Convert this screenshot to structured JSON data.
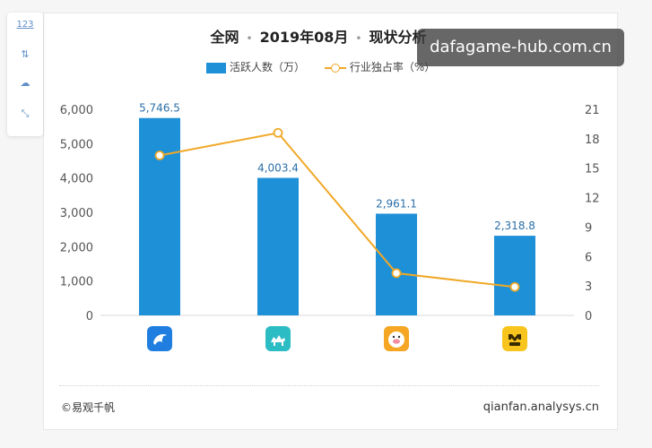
{
  "toolbar": {
    "items": [
      {
        "label": "123",
        "name": "data-view"
      },
      {
        "label": "⇅",
        "name": "switch-chart"
      },
      {
        "label": "☁",
        "name": "comment"
      },
      {
        "label": "⤡",
        "name": "fullscreen"
      }
    ]
  },
  "title": {
    "part1": "全网",
    "part2": "2019年08月",
    "part3": "现状分析"
  },
  "watermark": "dafagame-hub.com.cn",
  "colors": {
    "bar": "#1e90d8",
    "line": "#f0a826",
    "axis_text": "#555555",
    "grid": "#d8d8d8"
  },
  "chart_data": {
    "type": "bar",
    "categories": [
      "app-1",
      "app-2",
      "app-3",
      "app-4"
    ],
    "category_icons": [
      "dolphin-app-icon",
      "camel-app-icon",
      "pig-app-icon",
      "yellow-app-icon"
    ],
    "series": [
      {
        "name": "活跃人数（万）",
        "type": "bar",
        "axis": "left",
        "values": [
          5746.5,
          4003.4,
          2961.1,
          2318.8
        ],
        "labels": [
          "5,746.5",
          "4,003.4",
          "2,961.1",
          "2,318.8"
        ]
      },
      {
        "name": "行业独占率（%）",
        "type": "line",
        "axis": "right",
        "values": [
          16.3,
          18.6,
          4.3,
          2.9
        ]
      }
    ],
    "y_left": {
      "min": 0,
      "max": 6000,
      "ticks": [
        0,
        1000,
        2000,
        3000,
        4000,
        5000,
        6000
      ],
      "tick_labels": [
        "0",
        "1,000",
        "2,000",
        "3,000",
        "4,000",
        "5,000",
        "6,000"
      ]
    },
    "y_right": {
      "min": 0,
      "max": 21,
      "ticks": [
        0,
        3,
        6,
        9,
        12,
        15,
        18,
        21
      ],
      "tick_labels": [
        "0",
        "3",
        "6",
        "9",
        "12",
        "15",
        "18",
        "21"
      ]
    },
    "grid": false,
    "legend": "top-center"
  },
  "footer": {
    "left": "©易观千帆",
    "right": "qianfan.analysys.cn"
  }
}
